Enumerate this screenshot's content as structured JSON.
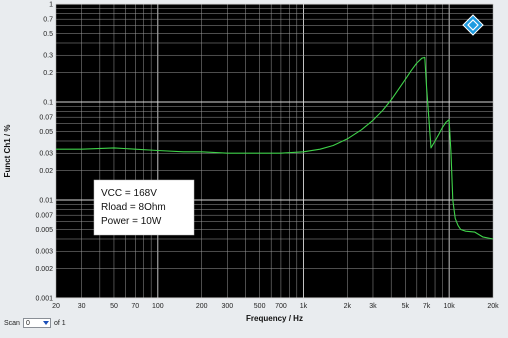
{
  "chart_data": {
    "type": "line",
    "title": "",
    "xlabel": "Frequency / Hz",
    "ylabel": "Funct Ch1 / %",
    "x_scale": "log",
    "y_scale": "log",
    "xlim": [
      20,
      20000
    ],
    "ylim": [
      0.001,
      1
    ],
    "grid": true,
    "x_ticks": [
      {
        "v": 20,
        "label": "20"
      },
      {
        "v": 30,
        "label": "30"
      },
      {
        "v": 50,
        "label": "50"
      },
      {
        "v": 70,
        "label": "70"
      },
      {
        "v": 100,
        "label": "100"
      },
      {
        "v": 200,
        "label": "200"
      },
      {
        "v": 300,
        "label": "300"
      },
      {
        "v": 500,
        "label": "500"
      },
      {
        "v": 700,
        "label": "700"
      },
      {
        "v": 1000,
        "label": "1k"
      },
      {
        "v": 2000,
        "label": "2k"
      },
      {
        "v": 3000,
        "label": "3k"
      },
      {
        "v": 5000,
        "label": "5k"
      },
      {
        "v": 7000,
        "label": "7k"
      },
      {
        "v": 10000,
        "label": "10k"
      },
      {
        "v": 20000,
        "label": "20k"
      }
    ],
    "y_ticks": [
      {
        "v": 1,
        "label": "1"
      },
      {
        "v": 0.7,
        "label": "0.7"
      },
      {
        "v": 0.5,
        "label": "0.5"
      },
      {
        "v": 0.3,
        "label": "0.3"
      },
      {
        "v": 0.2,
        "label": "0.2"
      },
      {
        "v": 0.1,
        "label": "0.1"
      },
      {
        "v": 0.07,
        "label": "0.07"
      },
      {
        "v": 0.05,
        "label": "0.05"
      },
      {
        "v": 0.03,
        "label": "0.03"
      },
      {
        "v": 0.02,
        "label": "0.02"
      },
      {
        "v": 0.01,
        "label": "0.01"
      },
      {
        "v": 0.007,
        "label": "0.007"
      },
      {
        "v": 0.005,
        "label": "0.005"
      },
      {
        "v": 0.003,
        "label": "0.003"
      },
      {
        "v": 0.002,
        "label": "0.002"
      },
      {
        "v": 0.001,
        "label": "0.001"
      }
    ],
    "series": [
      {
        "color": "#3fd24a",
        "x": [
          20,
          30,
          50,
          70,
          100,
          150,
          200,
          300,
          500,
          700,
          1000,
          1300,
          1600,
          2000,
          2500,
          3000,
          3500,
          4000,
          4500,
          5000,
          5500,
          6000,
          6500,
          6800,
          7000,
          7500,
          8000,
          8500,
          9000,
          9500,
          10000,
          10300,
          10600,
          11000,
          11500,
          12000,
          13000,
          15000,
          17000,
          20000
        ],
        "y": [
          0.033,
          0.033,
          0.034,
          0.033,
          0.032,
          0.031,
          0.031,
          0.03,
          0.03,
          0.03,
          0.031,
          0.033,
          0.036,
          0.042,
          0.052,
          0.065,
          0.082,
          0.105,
          0.135,
          0.17,
          0.21,
          0.25,
          0.28,
          0.285,
          0.14,
          0.034,
          0.04,
          0.047,
          0.055,
          0.062,
          0.066,
          0.03,
          0.01,
          0.0065,
          0.0055,
          0.005,
          0.0048,
          0.0047,
          0.0042,
          0.004
        ]
      }
    ],
    "annotation": {
      "lines": [
        "VCC = 168V",
        "Rload = 8Ohm",
        "Power = 10W"
      ]
    }
  },
  "logo": {
    "icon": "rohde-schwarz-diamond-icon",
    "color": "#1e9be0"
  },
  "scan": {
    "label": "Scan",
    "value": "0",
    "suffix": "of 1"
  }
}
